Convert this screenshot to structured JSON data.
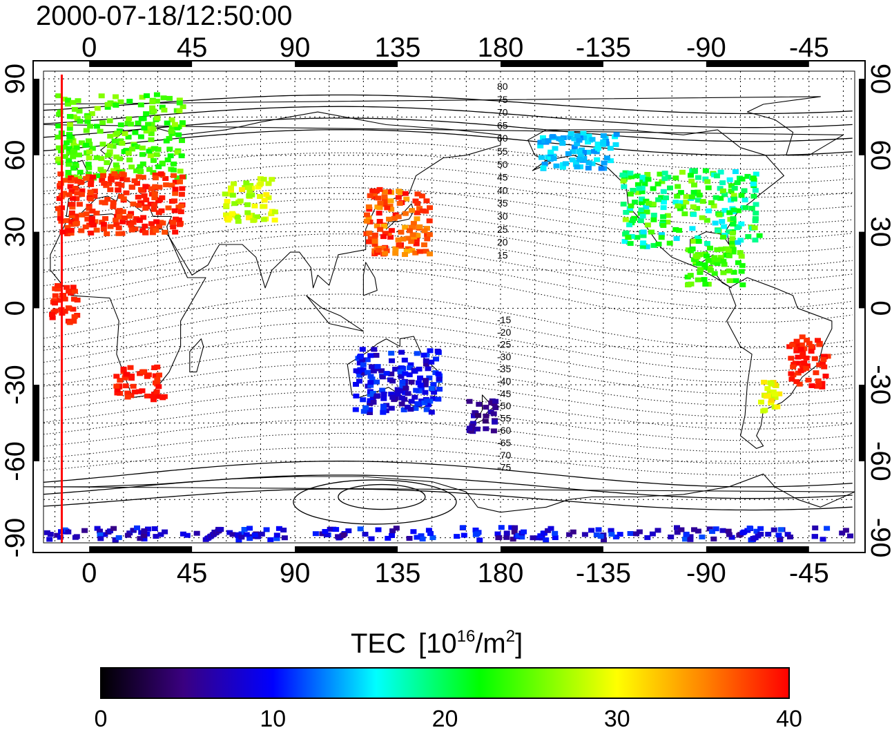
{
  "timestamp": "2000-07-18/12:50:00",
  "axes": {
    "top_lon_labels": [
      "0",
      "45",
      "90",
      "135",
      "180",
      "-135",
      "-90",
      "-45"
    ],
    "bottom_lon_labels": [
      "0",
      "45",
      "90",
      "135",
      "180",
      "-135",
      "-90",
      "-45"
    ],
    "lat_labels": [
      "90",
      "60",
      "30",
      "0",
      "-30",
      "-60",
      "-90"
    ],
    "lon_range": [
      -20,
      335
    ],
    "lat_range": [
      -92,
      93
    ]
  },
  "contour_labels": {
    "north": [
      "80",
      "75",
      "70",
      "65",
      "60",
      "55",
      "50",
      "45",
      "40",
      "35",
      "30",
      "25",
      "20",
      "15"
    ],
    "south": [
      "-15",
      "-20",
      "-25",
      "-30",
      "-35",
      "-40",
      "-45",
      "-50",
      "-55",
      "-60",
      "-65",
      "-70",
      "-75"
    ]
  },
  "colorbar": {
    "title": "TEC",
    "unit_base": "[10",
    "unit_exp": "16",
    "unit_mid": "/m",
    "unit_exp2": "2",
    "unit_end": "]",
    "tick_labels": [
      "0",
      "10",
      "20",
      "30",
      "40"
    ],
    "range": [
      0,
      40
    ]
  },
  "colors": {
    "scale": [
      "#000000",
      "#3a0080",
      "#0000ff",
      "#00ffff",
      "#00ff00",
      "#ffff00",
      "#ff0000"
    ],
    "marker_line": "#ff0000",
    "frame": "#000000"
  },
  "marker_line_lon": -12,
  "tec_regions": [
    {
      "name": "europe-high",
      "lon": [
        -15,
        40
      ],
      "lat": [
        52,
        85
      ],
      "tec": [
        22,
        27
      ]
    },
    {
      "name": "europe-mid",
      "lon": [
        -15,
        40
      ],
      "lat": [
        30,
        54
      ],
      "tec": [
        37,
        40
      ]
    },
    {
      "name": "central-asia",
      "lon": [
        58,
        80
      ],
      "lat": [
        35,
        52
      ],
      "tec": [
        26,
        31
      ]
    },
    {
      "name": "east-asia",
      "lon": [
        120,
        148
      ],
      "lat": [
        22,
        48
      ],
      "tec": [
        33,
        40
      ]
    },
    {
      "name": "north-america",
      "lon": [
        -128,
        -68
      ],
      "lat": [
        25,
        55
      ],
      "tec": [
        15,
        27
      ]
    },
    {
      "name": "alaska",
      "lon": [
        -165,
        -130
      ],
      "lat": [
        55,
        70
      ],
      "tec": [
        13,
        16
      ]
    },
    {
      "name": "caribbean",
      "lon": [
        -100,
        -75
      ],
      "lat": [
        10,
        25
      ],
      "tec": [
        22,
        26
      ]
    },
    {
      "name": "south-africa",
      "lon": [
        10,
        32
      ],
      "lat": [
        -35,
        -22
      ],
      "tec": [
        38,
        40
      ]
    },
    {
      "name": "australia",
      "lon": [
        115,
        152
      ],
      "lat": [
        -40,
        -15
      ],
      "tec": [
        6,
        12
      ]
    },
    {
      "name": "new-zealand",
      "lon": [
        165,
        178
      ],
      "lat": [
        -48,
        -35
      ],
      "tec": [
        4,
        8
      ]
    },
    {
      "name": "south-america-east",
      "lon": [
        -55,
        -38
      ],
      "lat": [
        -30,
        -10
      ],
      "tec": [
        38,
        40
      ]
    },
    {
      "name": "argentina",
      "lon": [
        -68,
        -58
      ],
      "lat": [
        -40,
        -28
      ],
      "tec": [
        28,
        32
      ]
    },
    {
      "name": "antarctic-belt",
      "lon": [
        -20,
        335
      ],
      "lat": [
        -90,
        -85
      ],
      "tec": [
        5,
        12
      ]
    },
    {
      "name": "west-africa",
      "lon": [
        -18,
        -5
      ],
      "lat": [
        -5,
        10
      ],
      "tec": [
        38,
        40
      ]
    }
  ]
}
